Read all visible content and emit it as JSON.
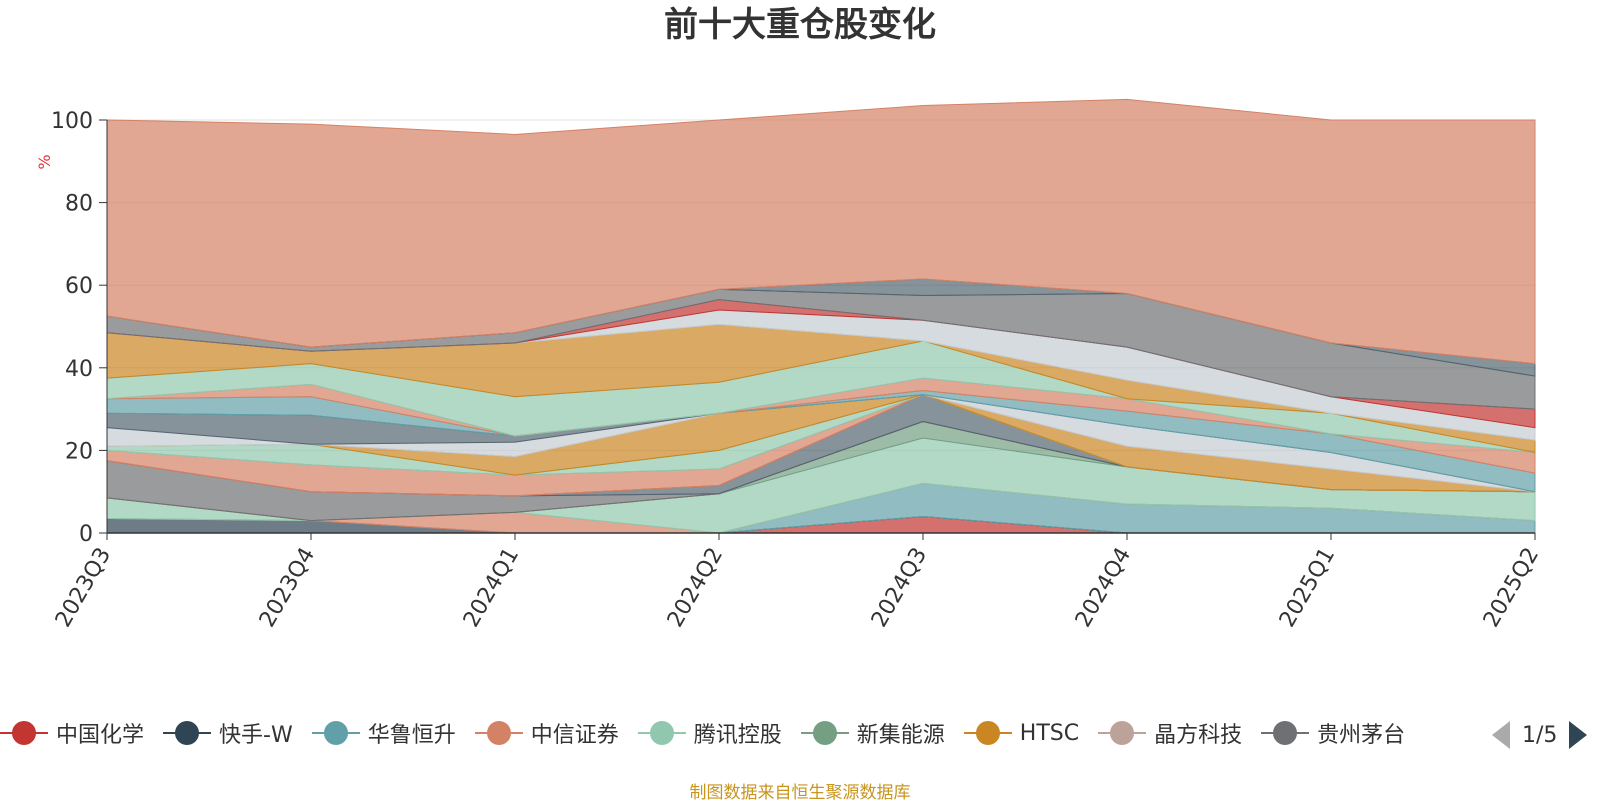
{
  "chart_data": {
    "type": "area",
    "stacked": true,
    "title": "前十大重仓股变化",
    "ylabel": "%",
    "ylim": [
      0,
      100
    ],
    "yticks": [
      0,
      20,
      40,
      60,
      80,
      100
    ],
    "grid": true,
    "legend_position": "bottom",
    "x": [
      "2023Q3",
      "2023Q4",
      "2024Q1",
      "2024Q2",
      "2024Q3",
      "2024Q4",
      "2025Q1",
      "2025Q2"
    ],
    "series": [
      {
        "name": "中国化学",
        "color": "#c23531",
        "values": [
          0,
          0,
          0,
          0,
          4,
          0,
          0,
          0
        ]
      },
      {
        "name": "快手-W",
        "color": "#2f4554",
        "values": [
          3.5,
          3,
          0,
          0,
          0,
          0,
          0,
          0
        ]
      },
      {
        "name": "华鲁恒升",
        "color": "#61a0a8",
        "values": [
          0,
          0,
          0,
          0,
          8,
          7,
          6,
          3
        ]
      },
      {
        "name": "中信证券",
        "color": "#d48265",
        "values": [
          0,
          0,
          5,
          0,
          0,
          0,
          0,
          0
        ]
      },
      {
        "name": "腾讯控股",
        "color": "#91c7ae",
        "values": [
          5,
          0,
          0,
          9.5,
          11,
          9,
          4.5,
          7
        ]
      },
      {
        "name": "新集能源",
        "color": "#749f83",
        "values": [
          0,
          0,
          0,
          0,
          4,
          0,
          0,
          0
        ]
      },
      {
        "name": "HTSC",
        "color": "#ca8622",
        "values": [
          0,
          0,
          0,
          0,
          0,
          0,
          0,
          0
        ]
      },
      {
        "name": "晶方科技",
        "color": "#bda29a",
        "values": [
          0,
          0,
          0,
          0,
          0,
          0,
          0,
          0
        ]
      },
      {
        "name": "贵州茅台",
        "color": "#6e7074",
        "values": [
          9,
          7,
          4,
          0,
          0,
          0,
          0,
          0
        ]
      },
      {
        "name": "",
        "color": "#546570",
        "values": [
          0,
          0,
          0,
          2,
          6.5,
          0,
          0,
          0
        ]
      },
      {
        "name": "",
        "color": "#c4ccd3",
        "values": [
          0,
          0,
          0,
          0,
          0,
          0,
          0,
          0
        ]
      },
      {
        "name": "",
        "color": "#c23531",
        "values": [
          0,
          0,
          0,
          0,
          0,
          0,
          0,
          0
        ]
      },
      {
        "name": "",
        "color": "#d48265",
        "values": [
          2.5,
          6.5,
          5,
          4,
          0,
          0,
          0,
          0
        ]
      },
      {
        "name": "",
        "color": "#91c7ae",
        "values": [
          0,
          0,
          0,
          4.5,
          0,
          0,
          0,
          0
        ]
      },
      {
        "name": "",
        "color": "#91c7ae",
        "values": [
          1,
          5,
          0,
          0,
          0,
          0,
          0,
          0
        ]
      },
      {
        "name": "",
        "color": "#ca8622",
        "values": [
          0,
          0,
          4.5,
          9,
          0,
          5,
          5,
          0
        ]
      },
      {
        "name": "",
        "color": "#c4ccd3",
        "values": [
          4.5,
          0,
          3.5,
          0,
          0,
          5,
          4,
          0
        ]
      },
      {
        "name": "",
        "color": "#546570",
        "values": [
          3.5,
          7,
          1.5,
          0,
          0,
          0,
          0,
          0
        ]
      },
      {
        "name": "",
        "color": "#61a0a8",
        "values": [
          3.5,
          4.5,
          0,
          0,
          1,
          3.5,
          4.5,
          4.5
        ]
      },
      {
        "name": "",
        "color": "#d48265",
        "values": [
          0,
          3,
          0,
          0,
          3,
          3,
          0,
          5
        ]
      },
      {
        "name": "",
        "color": "#91c7ae",
        "values": [
          5,
          5,
          9.5,
          7.5,
          9,
          0,
          5,
          0
        ]
      },
      {
        "name": "",
        "color": "#ca8622",
        "values": [
          11,
          3,
          13,
          14,
          0,
          4.5,
          0,
          3
        ]
      },
      {
        "name": "",
        "color": "#c4ccd3",
        "values": [
          0,
          0,
          0,
          3.5,
          5,
          8,
          4,
          3
        ]
      },
      {
        "name": "",
        "color": "#c23531",
        "values": [
          0,
          0,
          0,
          2.5,
          0,
          0,
          0,
          4.5
        ]
      },
      {
        "name": "",
        "color": "#6e7074",
        "values": [
          4,
          1,
          2.5,
          2.5,
          6,
          13,
          13,
          8
        ]
      },
      {
        "name": "",
        "color": "#546570",
        "values": [
          0,
          0,
          0,
          0,
          4,
          0,
          0,
          3
        ]
      },
      {
        "name": "",
        "color": "#d48265",
        "values": [
          47.5,
          54,
          48,
          41,
          42,
          47,
          54,
          59
        ]
      }
    ]
  },
  "legend": {
    "items": [
      {
        "label": "中国化学",
        "color": "#c23531"
      },
      {
        "label": "快手-W",
        "color": "#2f4554"
      },
      {
        "label": "华鲁恒升",
        "color": "#61a0a8"
      },
      {
        "label": "中信证券",
        "color": "#d48265"
      },
      {
        "label": "腾讯控股",
        "color": "#91c7ae"
      },
      {
        "label": "新集能源",
        "color": "#749f83"
      },
      {
        "label": "HTSC",
        "color": "#ca8622"
      },
      {
        "label": "晶方科技",
        "color": "#bda29a"
      },
      {
        "label": "贵州茅台",
        "color": "#6e7074"
      }
    ],
    "page_indicator": "1/5"
  },
  "source_note": "制图数据来自恒生聚源数据库"
}
